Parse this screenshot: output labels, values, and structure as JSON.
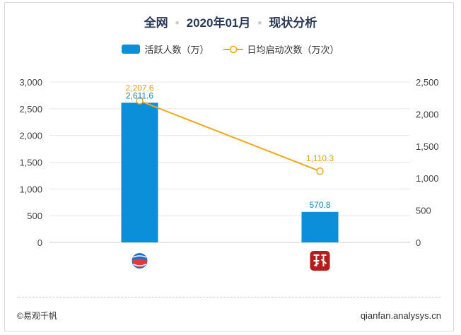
{
  "header": {
    "scope": "全网",
    "period": "2020年01月",
    "topic": "现状分析",
    "separator": "•"
  },
  "footer": {
    "brand": "©易观千帆",
    "site": "qianfan.analysys.cn"
  },
  "colors": {
    "bar": "#0a8fd8",
    "line": "#f2a81d",
    "bar_label": "#1e86c2",
    "line_label": "#e3a316",
    "axis_text": "#444444",
    "grid": "#e8e8e8"
  },
  "chart_data": {
    "type": "bar",
    "categories": [
      "app-1",
      "app-2"
    ],
    "category_icons": [
      "globe-logo-icon",
      "red-square-logo-icon"
    ],
    "series": [
      {
        "name": "活跃人数（万）",
        "type": "bar",
        "axis": "left",
        "values": [
          2611.6,
          570.8
        ],
        "labels": [
          "2,611.6",
          "570.8"
        ]
      },
      {
        "name": "日均启动次数（万次）",
        "type": "line",
        "axis": "right",
        "values": [
          2207.6,
          1110.3
        ],
        "labels": [
          "2,207.6",
          "1,110.3"
        ]
      }
    ],
    "y_left": {
      "min": 0,
      "max": 3000,
      "ticks": [
        "0",
        "500",
        "1,000",
        "1,500",
        "2,000",
        "2,500",
        "3,000"
      ]
    },
    "y_right": {
      "min": 0,
      "max": 2500,
      "ticks": [
        "0",
        "500",
        "1,000",
        "1,500",
        "2,000",
        "2,500"
      ]
    },
    "legend": "top-center",
    "grid": true
  }
}
